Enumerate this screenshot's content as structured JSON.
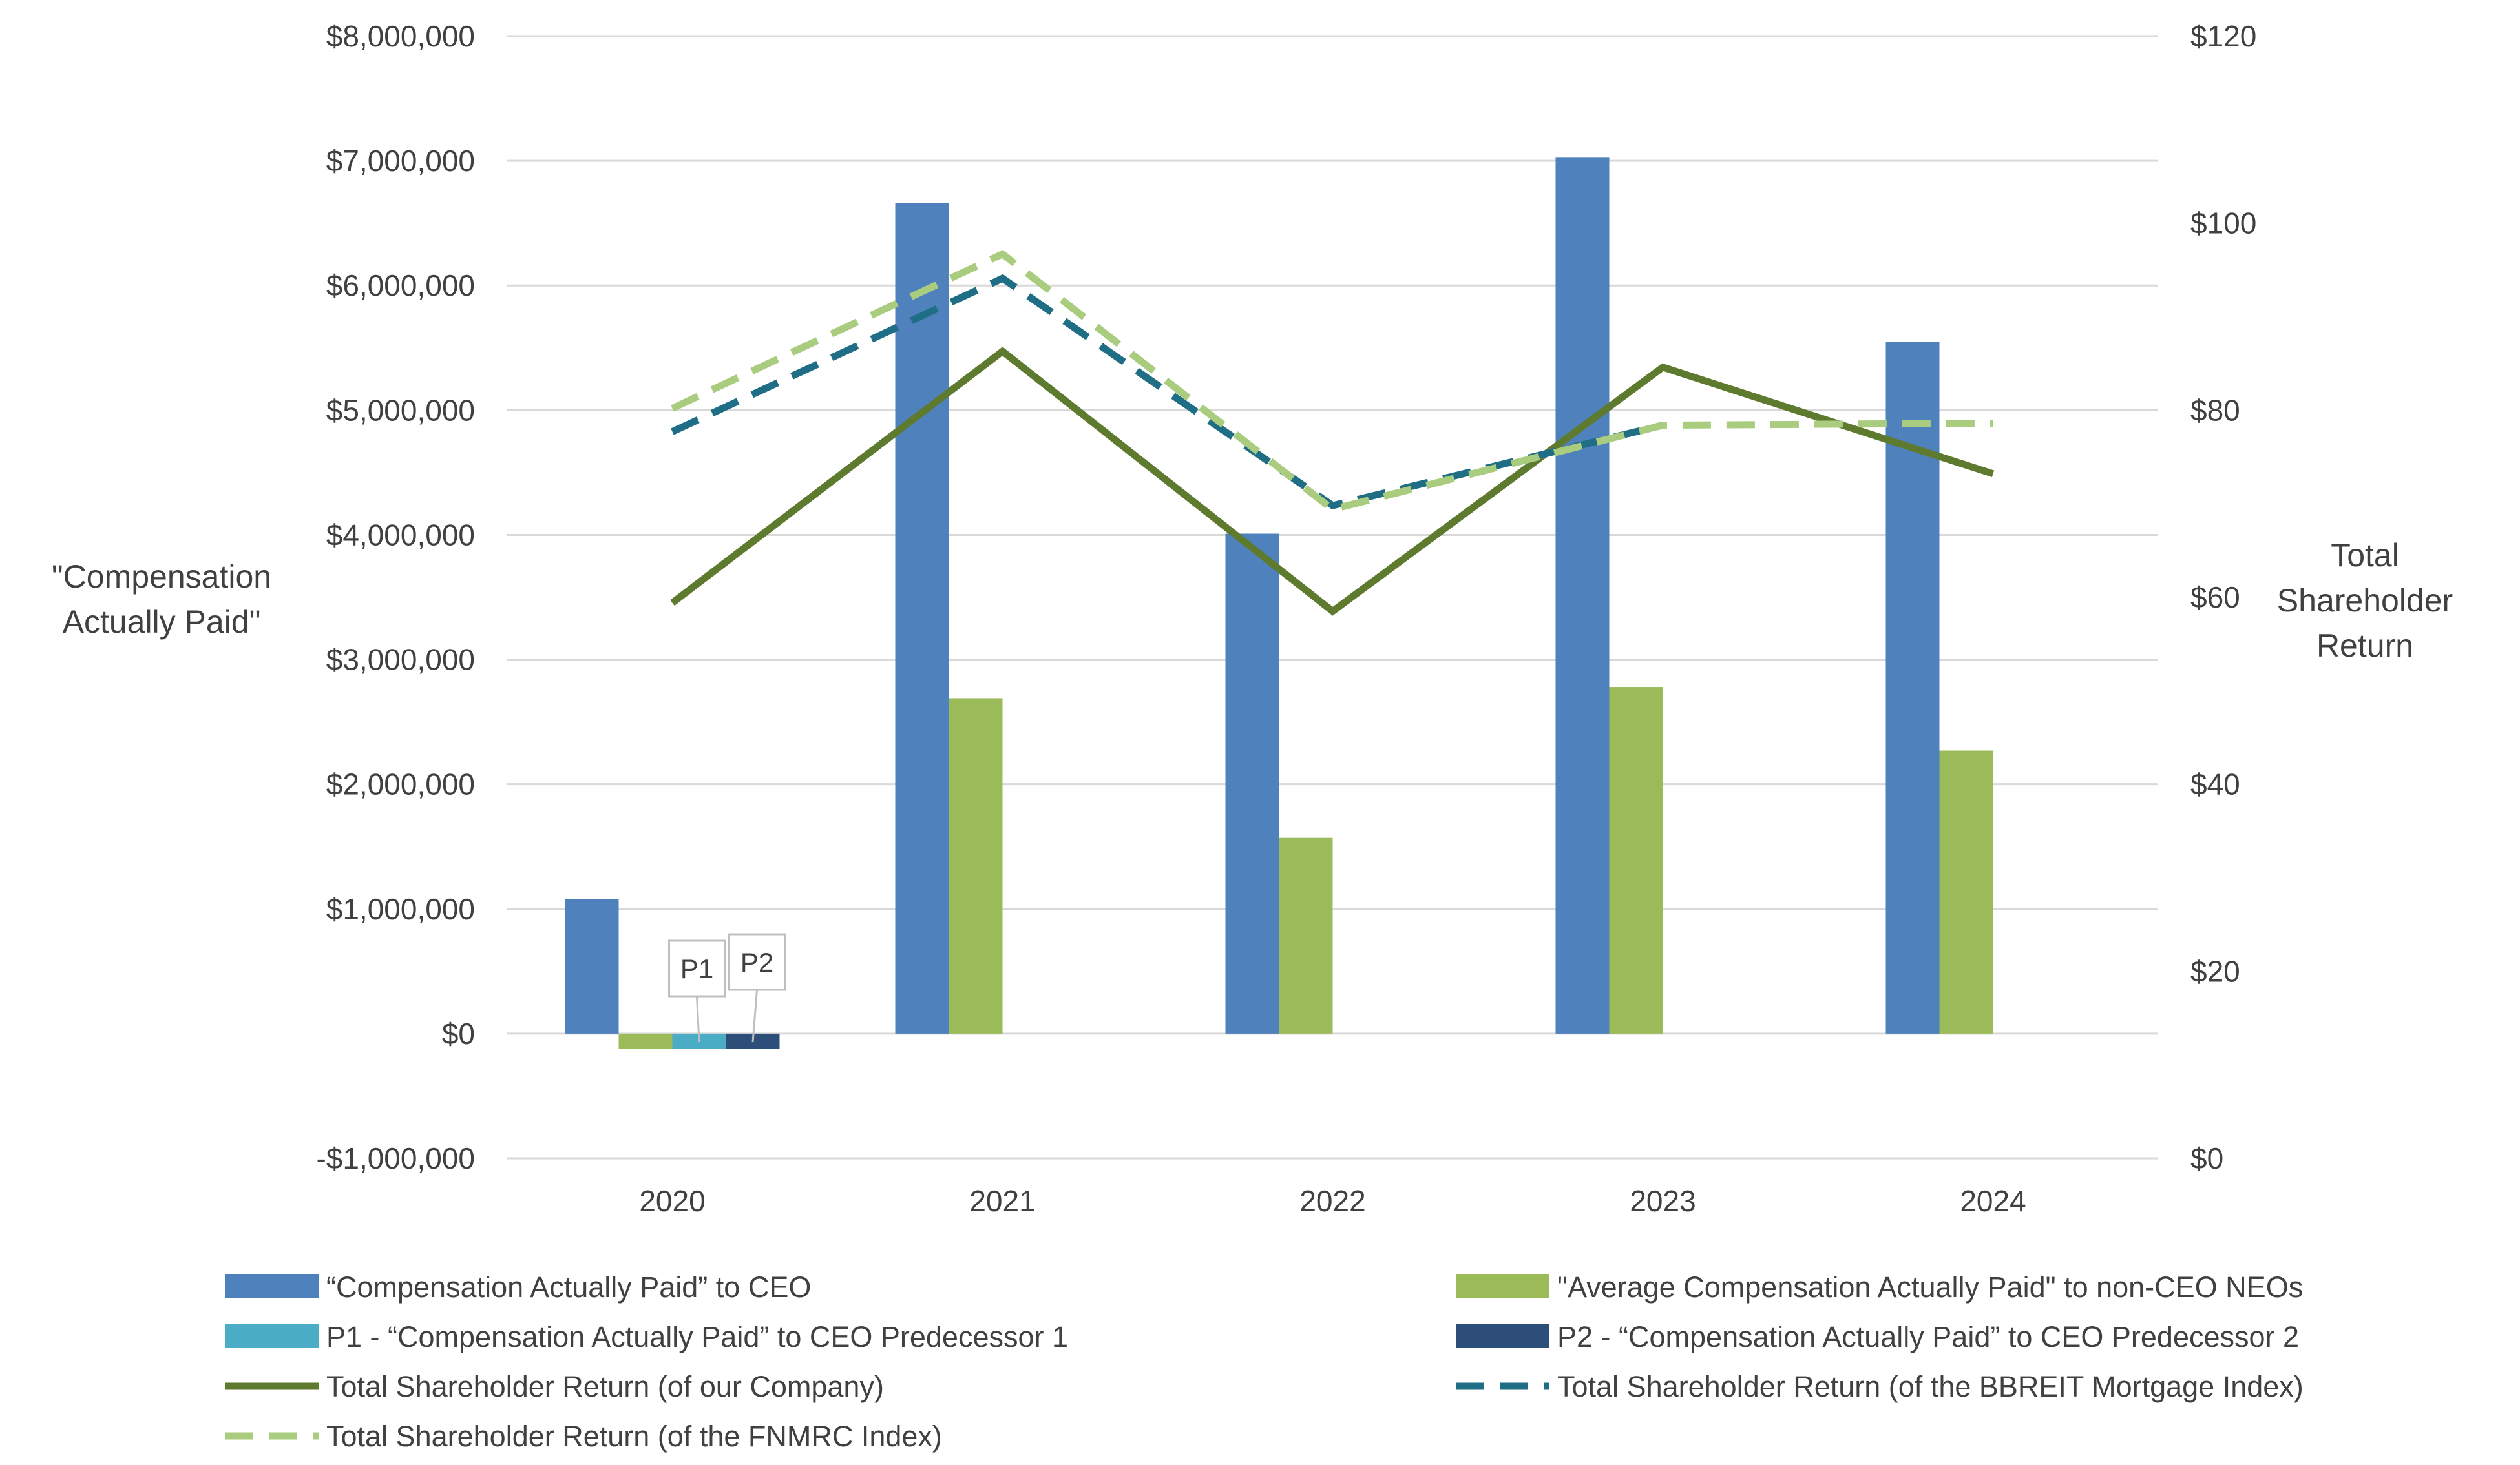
{
  "chart_data": {
    "type": "bar+line",
    "categories": [
      "2020",
      "2021",
      "2022",
      "2023",
      "2024"
    ],
    "y_left": {
      "title_lines": [
        "\"Compensation",
        "Actually Paid\""
      ],
      "ylim": [
        -1000000,
        8000000
      ],
      "ticks": [
        -1000000,
        0,
        1000000,
        2000000,
        3000000,
        4000000,
        5000000,
        6000000,
        7000000,
        8000000
      ],
      "tick_labels": [
        "-$1,000,000",
        "$0",
        "$1,000,000",
        "$2,000,000",
        "$3,000,000",
        "$4,000,000",
        "$5,000,000",
        "$6,000,000",
        "$7,000,000",
        "$8,000,000"
      ]
    },
    "y_right": {
      "title_lines": [
        "Total",
        "Shareholder",
        "Return"
      ],
      "ylim": [
        0,
        120
      ],
      "ticks": [
        0,
        20,
        40,
        60,
        80,
        100,
        120
      ],
      "tick_labels": [
        "$0",
        "$20",
        "$40",
        "$60",
        "$80",
        "$100",
        "$120"
      ]
    },
    "bar_series": [
      {
        "name": "“Compensation Actually Paid” to CEO",
        "color": "#4F81BD",
        "values": [
          1080000,
          6660000,
          4010000,
          7030000,
          5550000
        ]
      },
      {
        "name": "\"Average Compensation Actually Paid\" to non-CEO NEOs",
        "color": "#9BBB59",
        "values": [
          -120000,
          2690000,
          1570000,
          2780000,
          2270000
        ]
      },
      {
        "name": "P1 - “Compensation Actually Paid” to CEO Predecessor 1",
        "color": "#4BACC6",
        "values": [
          -120000,
          null,
          null,
          null,
          null
        ]
      },
      {
        "name": "P2 - “Compensation Actually Paid” to CEO Predecessor 2",
        "color": "#2E4E7A",
        "values": [
          -120000,
          null,
          null,
          null,
          null
        ]
      }
    ],
    "line_series": [
      {
        "name": "Total Shareholder Return (of our Company)",
        "color": "#5E7A2E",
        "dash": "solid",
        "values": [
          59.4,
          86.3,
          58.5,
          84.6,
          73.2
        ]
      },
      {
        "name": "Total Shareholder Return (of the BBREIT Mortgage Index)",
        "color": "#1F6E85",
        "dash": "dashed",
        "values": [
          77.7,
          94.1,
          69.8,
          78.4,
          null
        ]
      },
      {
        "name": "Total Shareholder Return (of the FNMRC Index)",
        "color": "#A9CC7E",
        "dash": "dashed",
        "values": [
          80.2,
          96.7,
          69.4,
          78.4,
          78.6
        ]
      }
    ],
    "annotations": [
      {
        "label": "P1",
        "category": "2020",
        "series": "P1 - “Compensation Actually Paid” to CEO Predecessor 1"
      },
      {
        "label": "P2",
        "category": "2020",
        "series": "P2 - “Compensation Actually Paid” to CEO Predecessor 2"
      }
    ],
    "grid": true,
    "legend_position": "bottom"
  }
}
